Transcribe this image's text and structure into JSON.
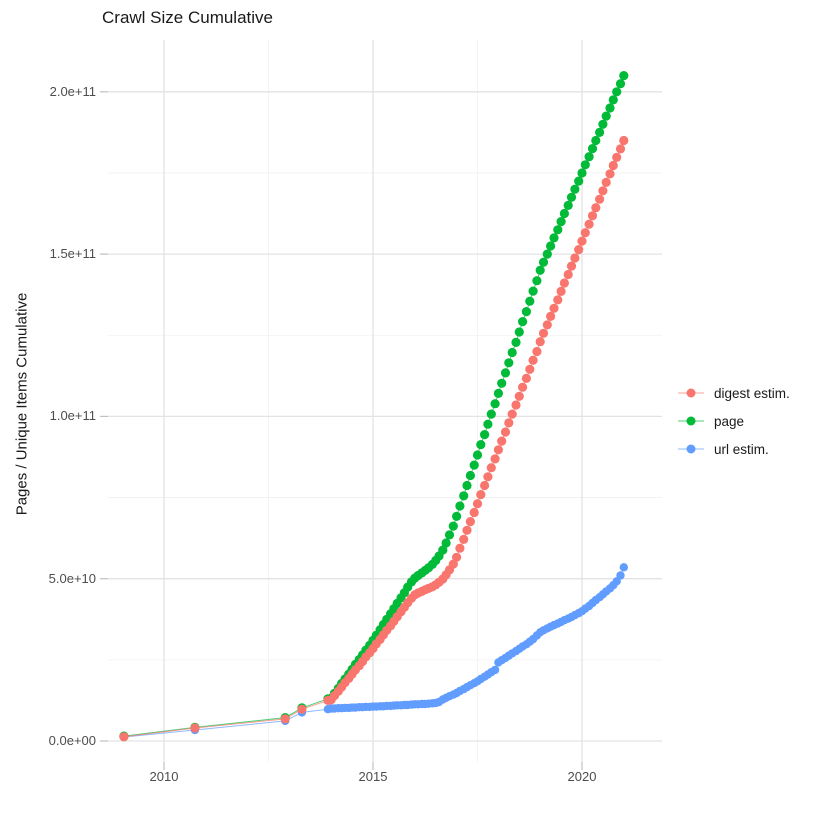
{
  "title": "Crawl Size Cumulative",
  "chart_data": {
    "type": "scatter",
    "title": "Crawl Size Cumulative",
    "xlabel": "",
    "ylabel": "Pages / Unique Items Cumulative",
    "legend_position": "right",
    "grid": true,
    "value_unit": "billions (1e9) of pages / items",
    "x_unit": "year (decimal)",
    "x_tick_labels": [
      "2010",
      "2015",
      "2020"
    ],
    "y_tick_labels": [
      "2.0e+11",
      "1.5e+11",
      "1.0e+11",
      "5.0e+10",
      "0.0e+00"
    ],
    "axes": {
      "x_major": [
        2010,
        2015,
        2020
      ],
      "x_minor": [
        2012.5,
        2017.5
      ],
      "y_major": [
        200,
        150,
        100,
        50,
        0
      ],
      "y_minor": [
        175,
        125,
        75,
        25
      ],
      "x_range": [
        2008.7,
        2021.9
      ],
      "y_range": [
        -2,
        216
      ]
    },
    "style": {
      "grid_major": "#e3e3e3",
      "grid_minor": "#f1f1f1",
      "tick": "#c2c2c2",
      "text_dark": "#1a1a1a",
      "text_axis": "#4d4d4d"
    },
    "x": [
      2009.04,
      2010.74,
      2012.9,
      2013.3,
      2013.92,
      2014,
      2014.08,
      2014.17,
      2014.25,
      2014.33,
      2014.42,
      2014.5,
      2014.58,
      2014.67,
      2014.75,
      2014.83,
      2014.92,
      2015,
      2015.08,
      2015.17,
      2015.25,
      2015.33,
      2015.42,
      2015.5,
      2015.58,
      2015.67,
      2015.75,
      2015.83,
      2015.92,
      2016,
      2016.08,
      2016.17,
      2016.25,
      2016.33,
      2016.42,
      2016.5,
      2016.58,
      2016.67,
      2016.75,
      2016.83,
      2016.92,
      2017,
      2017.08,
      2017.17,
      2017.25,
      2017.33,
      2017.42,
      2017.5,
      2017.58,
      2017.67,
      2017.75,
      2017.83,
      2017.92,
      2018,
      2018.08,
      2018.17,
      2018.25,
      2018.33,
      2018.42,
      2018.5,
      2018.58,
      2018.67,
      2018.75,
      2018.83,
      2018.92,
      2019,
      2019.08,
      2019.17,
      2019.25,
      2019.33,
      2019.42,
      2019.5,
      2019.58,
      2019.67,
      2019.75,
      2019.83,
      2019.92,
      2020,
      2020.08,
      2020.17,
      2020.25,
      2020.33,
      2020.42,
      2020.5,
      2020.58,
      2020.67,
      2020.75,
      2020.83,
      2020.92,
      2021
    ],
    "series": [
      {
        "name": "digest estim.",
        "color": "#F8766D",
        "point_radius": 4.6,
        "values": [
          1.3,
          4,
          6.8,
          9.8,
          12.5,
          12.7,
          14,
          15.3,
          16.6,
          18,
          19.3,
          20.6,
          21.9,
          23.2,
          24.5,
          25.9,
          27.2,
          28.5,
          29.9,
          31.3,
          32.7,
          34.1,
          35.5,
          36.9,
          38.3,
          39.8,
          41.2,
          42.6,
          44,
          45,
          45.6,
          46.1,
          46.6,
          47,
          47.5,
          48.1,
          48.9,
          49.9,
          51.2,
          52.7,
          54.5,
          56.6,
          59.4,
          62.1,
          64.9,
          67.6,
          70.4,
          73.1,
          75.9,
          78.7,
          81.4,
          84.2,
          86.9,
          89.7,
          92.4,
          95.2,
          98,
          100.7,
          103.5,
          106.2,
          109,
          111.7,
          114.5,
          117.3,
          120,
          123,
          125.6,
          128.2,
          130.8,
          133.3,
          135.9,
          138.5,
          141.1,
          143.7,
          146.3,
          148.8,
          151.4,
          154,
          156.6,
          159.2,
          161.8,
          164.3,
          166.9,
          169.5,
          172.1,
          174.7,
          177.3,
          179.8,
          182.4,
          185
        ]
      },
      {
        "name": "page",
        "color": "#00BA38",
        "point_radius": 4.6,
        "values": [
          1.5,
          4.2,
          7.2,
          10.2,
          13,
          13.2,
          14.7,
          16.2,
          17.7,
          19.1,
          20.6,
          22.1,
          23.6,
          25.1,
          26.5,
          28,
          29.5,
          31,
          32.6,
          34.3,
          35.9,
          37.5,
          39.2,
          40.8,
          42.4,
          44.1,
          45.7,
          47.4,
          49,
          50.2,
          51,
          51.8,
          52.6,
          53.4,
          54.4,
          55.6,
          57,
          58.8,
          61,
          63.5,
          66.2,
          69.2,
          72.4,
          75.5,
          78.7,
          81.8,
          85,
          88.1,
          91.3,
          94.4,
          97.6,
          100.7,
          103.9,
          107.1,
          110.2,
          113.4,
          116.5,
          119.7,
          122.8,
          126,
          129.2,
          132.3,
          135.5,
          138.6,
          141.8,
          145,
          147.5,
          150,
          152.5,
          155,
          157.5,
          160,
          162.5,
          165,
          167.5,
          170,
          172.5,
          175,
          177.5,
          180,
          182.5,
          185,
          187.5,
          190,
          192.5,
          195,
          197.5,
          200,
          202.5,
          205
        ]
      },
      {
        "name": "url estim.",
        "color": "#619CFF",
        "point_radius": 4.2,
        "values": [
          1.2,
          3.4,
          6.2,
          8.8,
          9.8,
          10,
          10,
          10.1,
          10.1,
          10.2,
          10.2,
          10.3,
          10.3,
          10.4,
          10.4,
          10.5,
          10.5,
          10.6,
          10.6,
          10.7,
          10.7,
          10.8,
          10.8,
          10.9,
          11,
          11,
          11.1,
          11.1,
          11.2,
          11.3,
          11.3,
          11.4,
          11.4,
          11.5,
          11.6,
          11.7,
          12,
          12.8,
          13.3,
          13.8,
          14.3,
          14.8,
          15.4,
          16,
          16.6,
          17.2,
          17.8,
          18.4,
          19.1,
          19.8,
          20.5,
          21.2,
          21.9,
          24.2,
          24.9,
          25.6,
          26.3,
          27,
          27.7,
          28.4,
          29.1,
          29.8,
          30.6,
          31.4,
          32.5,
          33.5,
          34.1,
          34.7,
          35.2,
          35.7,
          36.2,
          36.7,
          37.2,
          37.7,
          38.2,
          38.8,
          39.4,
          40,
          40.8,
          41.6,
          42.5,
          43.4,
          44.3,
          45.2,
          46.1,
          47,
          48,
          49.2,
          51,
          53.5
        ]
      }
    ]
  }
}
